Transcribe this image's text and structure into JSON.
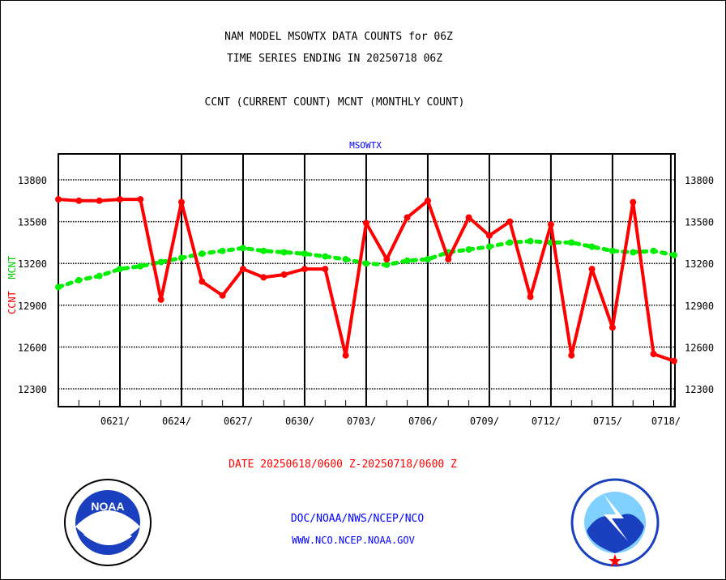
{
  "titles": {
    "line1": "NAM MODEL MSOWTX DATA COUNTS for 06Z",
    "line2": "TIME SERIES ENDING IN 20250718 06Z",
    "line3": "CCNT (CURRENT COUNT) MCNT (MONTHLY COUNT)"
  },
  "footer": {
    "date_range": "DATE 20250618/0600 Z-20250718/0600 Z",
    "org": "DOC/NOAA/NWS/NCEP/NCO",
    "url": "WWW.NCO.NCEP.NOAA.GOV",
    "logo_left": "NOAA - NATIONAL OCEANIC AND ATMOSPHERIC ADMINISTRATION - U.S. DEPARTMENT OF COMMERCE",
    "logo_right": "NATIONAL WEATHER SERVICE"
  },
  "colors": {
    "ccnt": "#ff0000",
    "mcnt": "#00ee00",
    "title": "#0000ff"
  },
  "chart_data": {
    "type": "line",
    "title": "MSOWTX",
    "xlabel": "",
    "ylabel_ccnt": "CCNT",
    "ylabel_mcnt": "MCNT",
    "ylim": [
      12180,
      14000
    ],
    "yticks": [
      12300,
      12600,
      12900,
      13200,
      13500,
      13800
    ],
    "ytick_labels": [
      "12300",
      "12600",
      "12900",
      "13200",
      "13500",
      "13800"
    ],
    "xtick_labels": [
      "0621/",
      "0624/",
      "0627/",
      "0630/",
      "0703/",
      "0706/",
      "0709/",
      "0712/",
      "0715/",
      "0718/"
    ],
    "xtick_index": [
      3,
      6,
      9,
      12,
      15,
      18,
      21,
      24,
      27,
      30
    ],
    "x": [
      "0618",
      "0619",
      "0620",
      "0621",
      "0622",
      "0623",
      "0624",
      "0625",
      "0626",
      "0627",
      "0628",
      "0629",
      "0630",
      "0701",
      "0702",
      "0703",
      "0704",
      "0705",
      "0706",
      "0707",
      "0708",
      "0709",
      "0710",
      "0711",
      "0712",
      "0713",
      "0714",
      "0715",
      "0716",
      "0717",
      "0718"
    ],
    "grid": true,
    "series": [
      {
        "name": "CCNT",
        "values": [
          13660,
          13650,
          13650,
          13660,
          13660,
          12940,
          13640,
          13070,
          12970,
          13160,
          13100,
          13120,
          13160,
          13160,
          12540,
          13490,
          13230,
          13530,
          13650,
          13230,
          13530,
          13400,
          13500,
          12960,
          13480,
          12540,
          13160,
          12740,
          13640,
          12550,
          12500
        ]
      },
      {
        "name": "MCNT",
        "values": [
          13030,
          13080,
          13110,
          13160,
          13180,
          13210,
          13240,
          13270,
          13290,
          13310,
          13290,
          13280,
          13270,
          13250,
          13230,
          13200,
          13190,
          13220,
          13230,
          13280,
          13300,
          13320,
          13350,
          13360,
          13350,
          13350,
          13320,
          13290,
          13280,
          13290,
          13260
        ]
      }
    ]
  }
}
